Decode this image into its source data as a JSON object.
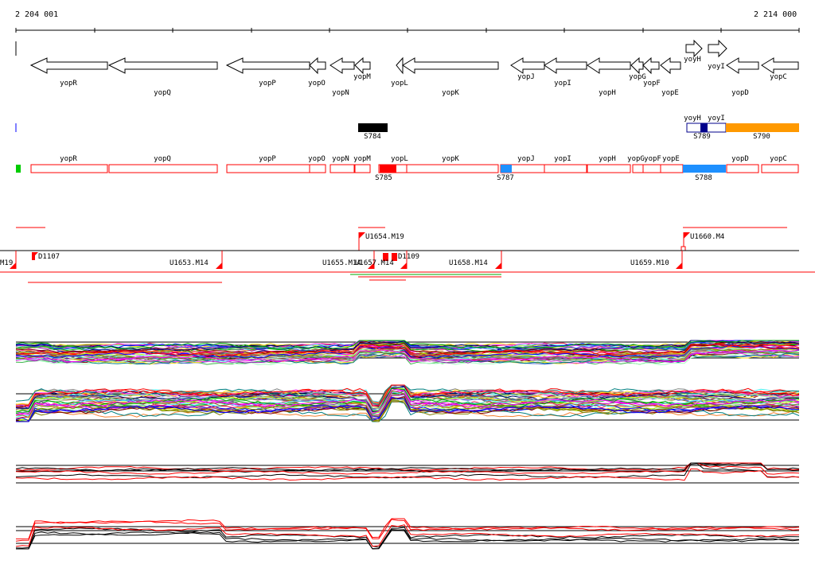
{
  "ruler": {
    "start_label": "2 204 001",
    "end_label": "2 214 000"
  },
  "genes_track": {
    "labels": [
      "yopR",
      "yopQ",
      "yopP",
      "yopO",
      "yopN",
      "yopM",
      "yopL",
      "yopK",
      "yopJ",
      "yopI",
      "yopH",
      "yopG",
      "yopF",
      "yopE",
      "yopD",
      "yoyH",
      "yoyI",
      "yopC"
    ]
  },
  "blocks_track": {
    "labels": [
      "S784",
      "S789",
      "S790",
      "yoyH",
      "yoyI"
    ],
    "colors": {
      "black": "#000000",
      "navy": "#00008b",
      "orange": "#ff9900",
      "blue": "#0000ff"
    }
  },
  "expression_track": {
    "labels": [
      "yopR",
      "yopQ",
      "yopP",
      "yopO",
      "yopN",
      "yopM",
      "yopL",
      "yopK",
      "yopJ",
      "yopI",
      "yopH",
      "yopG",
      "yopF",
      "yopE",
      "yopD",
      "yopC",
      "S785",
      "S787",
      "S788"
    ],
    "colors": {
      "outline": "#ff0000",
      "green": "#00cc00",
      "red": "#ff0000",
      "lightblue": "#1e90ff"
    }
  },
  "segments_track": {
    "labels": [
      "U1654.M19",
      "U1660.M4",
      "M19",
      "D1107",
      "U1653.M14",
      "U1655.M14",
      "U1657.M14",
      "D1109",
      "U1658.M14",
      "U1659.M10"
    ]
  },
  "profiles": {
    "panel_count": 4,
    "colors": {
      "black": "#000000",
      "red": "#ff0000"
    }
  }
}
